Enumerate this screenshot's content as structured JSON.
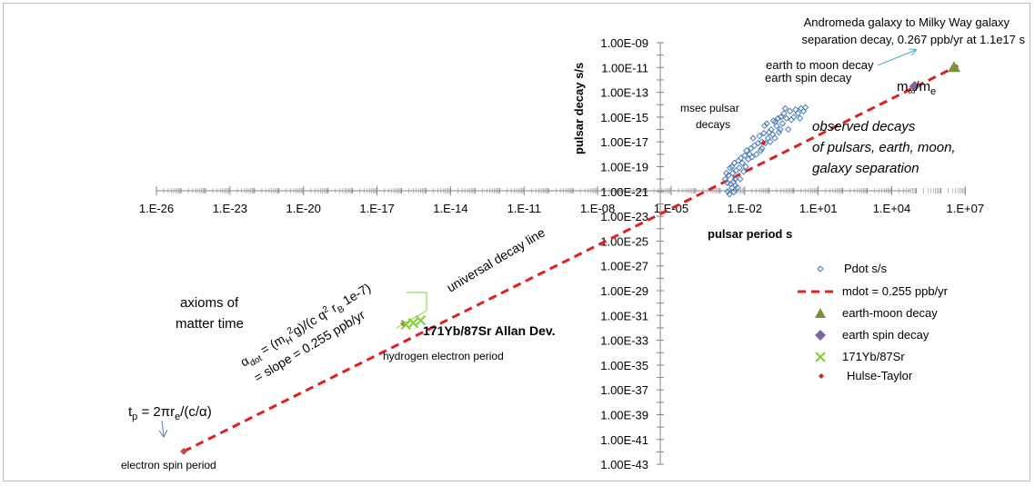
{
  "chart_data": {
    "type": "scatter",
    "x_scale": "log",
    "y_scale": "log",
    "xlabel": "pulsar period s",
    "ylabel": "pulsar decay s/s",
    "xlim": [
      1e-27,
      100000000.0
    ],
    "ylim": [
      1e-43,
      1e-09
    ],
    "x_tick_labels": [
      "1.E-26",
      "1.E-23",
      "1.E-20",
      "1.E-17",
      "1.E-14",
      "1.E-11",
      "1.E-08",
      "1.E-05",
      "1.E-02",
      "1.E+01",
      "1.E+04",
      "1.E+07"
    ],
    "x_tick_values": [
      1e-26,
      1e-23,
      1e-20,
      1e-17,
      1e-14,
      1e-11,
      1e-08,
      1e-05,
      0.01,
      10.0,
      10000.0,
      10000000.0
    ],
    "y_tick_labels": [
      "1.00E-09",
      "1.00E-11",
      "1.00E-13",
      "1.00E-15",
      "1.00E-17",
      "1.00E-19",
      "1.00E-21",
      "1.00E-23",
      "1.00E-25",
      "1.00E-27",
      "1.00E-29",
      "1.00E-31",
      "1.00E-33",
      "1.00E-35",
      "1.00E-37",
      "1.00E-39",
      "1.00E-41",
      "1.00E-43"
    ],
    "y_tick_values": [
      1e-09,
      1e-11,
      1e-13,
      1e-15,
      1e-17,
      1e-19,
      1e-21,
      1e-23,
      1e-25,
      1e-27,
      1e-29,
      1e-31,
      1e-33,
      1e-35,
      1e-37,
      1e-39,
      1e-41,
      1e-43
    ],
    "grid": false,
    "legend_position": "right",
    "series": [
      {
        "name": "Pdot s/s",
        "marker": "diamond-open",
        "color": "#4a7ebb",
        "points": [
          [
            0.0016,
            1e-20
          ],
          [
            0.0018,
            3e-20
          ],
          [
            0.002,
            5e-21
          ],
          [
            0.0022,
            2e-20
          ],
          [
            0.0025,
            8e-20
          ],
          [
            0.0027,
            4e-21
          ],
          [
            0.003,
            1e-19
          ],
          [
            0.0032,
            3e-20
          ],
          [
            0.0035,
            6e-21
          ],
          [
            0.0038,
            2e-19
          ],
          [
            0.004,
            1e-20
          ],
          [
            0.0045,
            5e-20
          ],
          [
            0.005,
            2e-21
          ],
          [
            0.0055,
            3e-19
          ],
          [
            0.006,
            8e-20
          ],
          [
            0.0065,
            1e-20
          ],
          [
            0.007,
            5e-19
          ],
          [
            0.008,
            2e-19
          ],
          [
            0.009,
            4e-20
          ],
          [
            0.01,
            8e-19
          ],
          [
            0.011,
            1e-19
          ],
          [
            0.012,
            2e-18
          ],
          [
            0.014,
            4e-19
          ],
          [
            0.016,
            1e-18
          ],
          [
            0.018,
            3e-18
          ],
          [
            0.02,
            6e-19
          ],
          [
            0.022,
            2e-17
          ],
          [
            0.025,
            5e-18
          ],
          [
            0.03,
            1e-18
          ],
          [
            0.035,
            8e-18
          ],
          [
            0.04,
            3e-17
          ],
          [
            0.045,
            2e-18
          ],
          [
            0.05,
            1e-17
          ],
          [
            0.06,
            5e-17
          ],
          [
            0.07,
            8e-18
          ],
          [
            0.08,
            3e-16
          ],
          [
            0.09,
            2e-17
          ],
          [
            0.1,
            6e-17
          ],
          [
            0.12,
            1e-16
          ],
          [
            0.14,
            4e-17
          ],
          [
            0.15,
            5e-16
          ],
          [
            0.17,
            2e-17
          ],
          [
            0.2,
            2e-16
          ],
          [
            0.23,
            8e-16
          ],
          [
            0.25,
            6e-17
          ],
          [
            0.3,
            1e-15
          ],
          [
            0.35,
            3e-16
          ],
          [
            0.4,
            2e-15
          ],
          [
            0.5,
            8e-16
          ],
          [
            0.6,
            1e-16
          ],
          [
            0.7,
            3e-15
          ],
          [
            0.8,
            6e-16
          ],
          [
            1.0,
            1e-15
          ],
          [
            1.2,
            4e-15
          ],
          [
            1.5,
            2e-15
          ],
          [
            1.8,
            8e-16
          ],
          [
            2.0,
            5e-15
          ],
          [
            2.5,
            3e-15
          ],
          [
            3.0,
            6e-15
          ],
          [
            0.002,
            1e-21
          ],
          [
            0.0024,
            6e-22
          ],
          [
            0.003,
            2e-21
          ],
          [
            0.0036,
            9e-22
          ],
          [
            0.0042,
            3e-21
          ],
          [
            0.05,
            3e-18
          ],
          [
            0.065,
            2e-16
          ],
          [
            0.11,
            1e-17
          ],
          [
            0.18,
            4e-16
          ],
          [
            0.28,
            1e-16
          ],
          [
            0.45,
            5e-15
          ]
        ]
      },
      {
        "name": "mdot = 0.255 ppb/yr",
        "style": "dashed-line",
        "color": "#e02020",
        "points": [
          [
            1.3e-25,
            1.1e-42
          ],
          [
            5000000.0,
            1.4e-11
          ]
        ]
      },
      {
        "name": "earth-moon decay",
        "marker": "triangle",
        "color": "#77933c",
        "points": [
          [
            3500000.0,
            1e-11
          ]
        ]
      },
      {
        "name": "earth spin decay",
        "marker": "diamond",
        "color": "#8064a2",
        "points": [
          [
            86000.0,
            3e-13
          ]
        ]
      },
      {
        "name": "171Yb/87Sr",
        "marker": "x",
        "color": "#7fd035",
        "points": [
          [
            1.5e-16,
            1.8e-32
          ],
          [
            3e-16,
            2.5e-32
          ],
          [
            6e-16,
            4e-32
          ]
        ]
      },
      {
        "name": "Hulse-Taylor",
        "marker": "diamond-small",
        "color": "#d32020",
        "points": [
          [
            0.059,
            8.6e-18
          ]
        ]
      }
    ],
    "annotations": {
      "andromeda": [
        "Andromeda galaxy to Milky Way galaxy",
        "separation decay, 0.267 ppb/yr at 1.1e17 s"
      ],
      "earth_moon": "earth to moon decay",
      "earth_spin": "earth spin decay",
      "m_ratio_base": "m",
      "m_ratio_sub1": "∞",
      "m_ratio_mid": "/m",
      "m_ratio_sub2": "e",
      "msec": [
        "msec pulsar",
        "decays"
      ],
      "observed": [
        "observed decays",
        "of pulsars, earth, moon,",
        "galaxy separation"
      ],
      "universal": "universal decay line",
      "axioms": [
        "axioms of",
        "matter time"
      ],
      "alpha_line1": {
        "a": "α",
        "a_sub": "dot",
        "b": " =  (m",
        "b_sub": "H",
        "b_sup": "2",
        "c": "g)/(c q",
        "c_sup": "2",
        "d": " r",
        "d_sub": "B",
        "e": " 1e-7)"
      },
      "alpha_line2": "= slope = 0.255 ppb/yr",
      "allan": "171Yb/87Sr Allan Dev.",
      "hydrogen": "hydrogen electron period",
      "tp": {
        "t": "t",
        "t_sub": "p",
        "mid": " = 2πr",
        "r_sub": "e",
        "end": "/(c/α)"
      },
      "electron": "electron spin period"
    },
    "colors": {
      "pulsar": "#4a7ebb",
      "line": "#e02020",
      "andromeda": "#4bacc6",
      "earth_moon": "#77933c",
      "earth_spin": "#8064a2",
      "yb_sr": "#7fd035",
      "hulse": "#d32020",
      "arrow": "#4f81bd",
      "electron_marker": "#c0504d"
    }
  }
}
